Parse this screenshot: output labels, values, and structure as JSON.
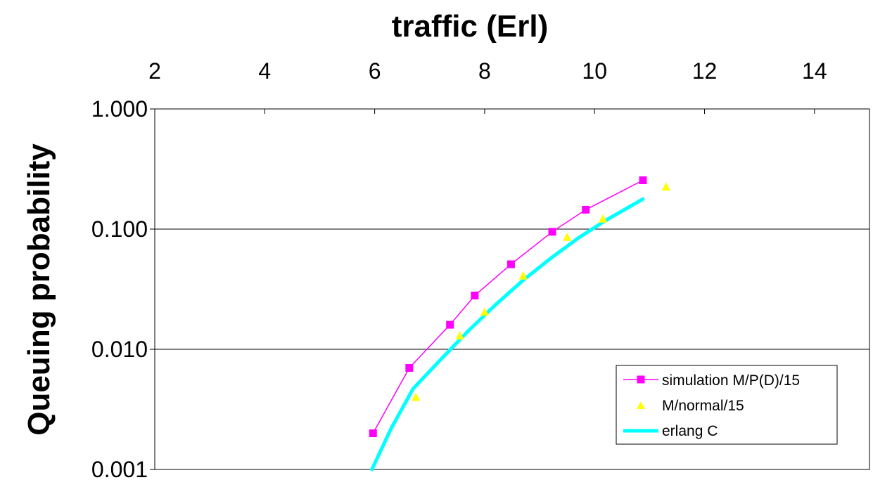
{
  "chart_data": {
    "type": "line",
    "title": "",
    "xlabel": "traffic (Erl)",
    "ylabel": "Queuing probability",
    "x_axis_position": "top",
    "xlim": [
      2,
      15
    ],
    "xticks": [
      2,
      4,
      6,
      8,
      10,
      12,
      14
    ],
    "xtick_labels": [
      "2",
      "4",
      "6",
      "8",
      "10",
      "12",
      "14"
    ],
    "ylim": [
      0.001,
      1.0
    ],
    "yscale": "log",
    "yticks": [
      0.001,
      0.01,
      0.1,
      1.0
    ],
    "ytick_labels": [
      "0.001",
      "0.010",
      "0.100",
      "1.000"
    ],
    "grid": "horizontal major",
    "legend_position": "bottom-right",
    "series": [
      {
        "name": "simulation M/P(D)/15",
        "style": "line with square markers",
        "color": "#ff00ff",
        "x": [
          5.97,
          6.63,
          7.37,
          7.82,
          8.48,
          9.23,
          9.84,
          10.88
        ],
        "y": [
          0.002,
          0.007,
          0.016,
          0.028,
          0.051,
          0.095,
          0.145,
          0.255
        ]
      },
      {
        "name": "M/normal/15",
        "style": "triangle markers",
        "color": "#ffff00",
        "x": [
          6.75,
          7.55,
          8.0,
          8.7,
          9.5,
          10.15,
          11.3
        ],
        "y": [
          0.004,
          0.013,
          0.0205,
          0.041,
          0.086,
          0.122,
          0.225
        ]
      },
      {
        "name": "erlang C",
        "style": "thick line",
        "color": "#00ffff",
        "x": [
          5.95,
          6.3,
          6.7,
          7.2,
          7.7,
          8.2,
          8.7,
          9.2,
          9.7,
          10.2,
          10.88
        ],
        "y": [
          0.001,
          0.0022,
          0.0047,
          0.0082,
          0.0142,
          0.0235,
          0.0375,
          0.057,
          0.084,
          0.118,
          0.178
        ]
      }
    ]
  },
  "colors": {
    "axis": "#000000",
    "gridline": "#000000",
    "background": "#ffffff"
  }
}
